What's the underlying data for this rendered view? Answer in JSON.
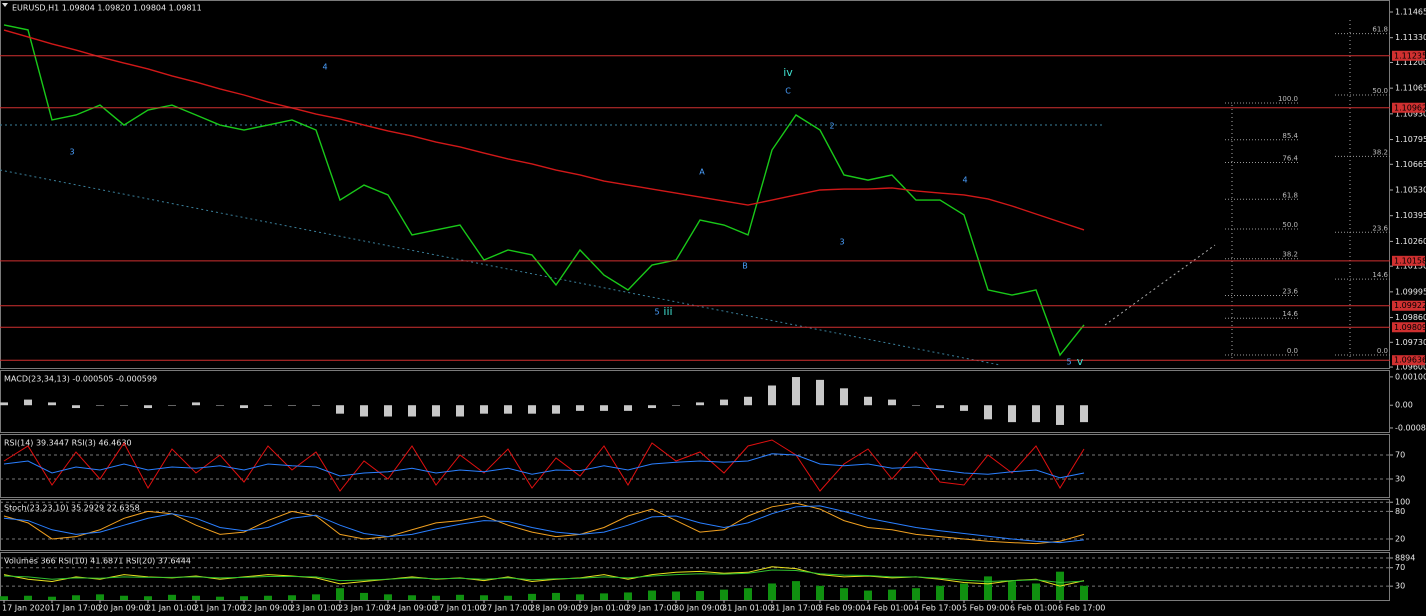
{
  "chart_data": [
    {
      "type": "line",
      "title": "EURUSD,H1 1.09804 1.09820 1.09804 1.09811",
      "categories": [
        "17 Jan 2020",
        null,
        "17 Jan 17:00",
        null,
        "20 Jan 09:00",
        null,
        "21 Jan 01:00",
        null,
        "21 Jan 17:00",
        null,
        "22 Jan 09:00",
        null,
        "23 Jan 01:00",
        null,
        "23 Jan 17:00",
        null,
        "24 Jan 09:00",
        null,
        "27 Jan 01:00",
        null,
        "27 Jan 17:00",
        null,
        "28 Jan 09:00",
        null,
        "29 Jan 01:00",
        null,
        "29 Jan 17:00",
        null,
        "30 Jan 09:00",
        null,
        "31 Jan 01:00",
        null,
        "31 Jan 17:00",
        null,
        "3 Feb 09:00",
        null,
        "4 Feb 01:00",
        null,
        "4 Feb 17:00",
        null,
        "5 Feb 09:00",
        null,
        "6 Feb 01:00",
        null,
        "6 Feb 17:00",
        null
      ],
      "series": [
        {
          "color": "#19c819",
          "values": [
            1.11397,
            1.11371,
            1.10898,
            1.10924,
            1.10976,
            1.10871,
            1.1095,
            1.10976,
            1.10924,
            1.10871,
            1.10845,
            1.10871,
            1.10898,
            1.10845,
            1.10477,
            1.10556,
            1.10504,
            1.10294,
            1.1032,
            1.10346,
            1.10162,
            1.10215,
            1.10189,
            1.10031,
            1.10215,
            1.10083,
            1.10005,
            1.10136,
            1.10162,
            1.10372,
            1.10346,
            1.10294,
            1.1074,
            1.10924,
            1.10845,
            1.10609,
            1.10582,
            1.10609,
            1.10477,
            1.10477,
            1.10399,
            1.10005,
            1.09978,
            1.10005,
            1.09663,
            1.09821
          ]
        },
        {
          "color": "#d01818",
          "values": [
            1.1137,
            1.11334,
            1.11297,
            1.11265,
            1.11229,
            1.11197,
            1.11166,
            1.11129,
            1.11097,
            1.11061,
            1.11029,
            1.10992,
            1.10961,
            1.10929,
            1.10903,
            1.10871,
            1.1084,
            1.10814,
            1.10782,
            1.10756,
            1.10724,
            1.10693,
            1.10667,
            1.10635,
            1.10609,
            1.10577,
            1.10556,
            1.10535,
            1.10514,
            1.10493,
            1.10472,
            1.10451,
            1.10477,
            1.10504,
            1.1053,
            1.10535,
            1.10535,
            1.10541,
            1.10525,
            1.10514,
            1.10504,
            1.10483,
            1.10446,
            1.10404,
            1.10362,
            1.1032
          ]
        }
      ],
      "ylim": [
        1.09595,
        1.11528
      ],
      "yticks": [
        {
          "value": 1.11465,
          "label": "1.11465"
        },
        {
          "value": 1.1133,
          "label": "1.11330"
        },
        {
          "value": 1.112,
          "label": "1.11200"
        },
        {
          "value": 1.11065,
          "label": "1.11065"
        },
        {
          "value": 1.1093,
          "label": "1.10930"
        },
        {
          "value": 1.10795,
          "label": "1.10795"
        },
        {
          "value": 1.10665,
          "label": "1.10665"
        },
        {
          "value": 1.1053,
          "label": "1.10530"
        },
        {
          "value": 1.10395,
          "label": "1.10395"
        },
        {
          "value": 1.1026,
          "label": "1.10260"
        },
        {
          "value": 1.1013,
          "label": "1.10130"
        },
        {
          "value": 1.09995,
          "label": "1.09995"
        },
        {
          "value": 1.0986,
          "label": "1.09860"
        },
        {
          "value": 1.0973,
          "label": "1.09730"
        },
        {
          "value": 1.096,
          "label": "1.09600"
        }
      ],
      "grid": false,
      "levels": [
        1.11235,
        1.10962,
        1.10158,
        1.09922,
        1.09809,
        1.09636
      ],
      "level_color": "#d03030",
      "wave_labels": [
        "3",
        "4",
        "iv",
        "C",
        "A",
        "B",
        "5",
        "iii",
        "2",
        "3",
        "4",
        "5",
        "v"
      ],
      "fib_left": [
        {
          "value": 100,
          "label": "100.0"
        },
        85.4,
        76.4,
        61.8,
        {
          "value": 50,
          "label": "50.0"
        },
        38.2,
        23.6,
        14.6,
        {
          "value": 0,
          "label": "0.0"
        }
      ],
      "fib_right": [
        61.8,
        {
          "value": 50,
          "label": "50.0"
        },
        38.2,
        23.6,
        14.6,
        {
          "value": 0,
          "label": "0.0"
        }
      ]
    },
    {
      "type": "bar",
      "title": "MACD(23,34,13) -0.000505 -0.000599",
      "color": "#c8c8c8",
      "values": [
        0.0001,
        0.0002,
        0.0001,
        -0.0001,
        0.0,
        0.0,
        -0.0001,
        0.0,
        0.0001,
        0.0,
        -0.0001,
        0.0,
        0.0,
        0.0,
        -0.0003,
        -0.0004,
        -0.0004,
        -0.0004,
        -0.0004,
        -0.0004,
        -0.0003,
        -0.0003,
        -0.0003,
        -0.0003,
        -0.0002,
        -0.0002,
        -0.0002,
        -0.0001,
        0.0,
        0.0001,
        0.0002,
        0.0003,
        0.0007,
        0.001,
        0.0009,
        0.0006,
        0.0003,
        0.0002,
        0.0,
        -0.0001,
        -0.0002,
        -0.0005,
        -0.0006,
        -0.0006,
        -0.0007,
        -0.0006
      ],
      "ylim": [
        -0.00095,
        0.00125
      ],
      "yticks": [
        0.001005,
        {
          "value": 0,
          "label": "0.00"
        },
        -0.000807
      ],
      "grid": false
    },
    {
      "type": "line",
      "title": "RSI(14) 39.3447 RSI(3) 46.4630",
      "series": [
        {
          "color": "#e01010",
          "values": [
            60,
            85,
            20,
            75,
            30,
            90,
            15,
            80,
            40,
            70,
            25,
            85,
            45,
            75,
            10,
            60,
            30,
            85,
            20,
            70,
            40,
            80,
            15,
            65,
            35,
            85,
            20,
            90,
            60,
            75,
            40,
            85,
            95,
            70,
            10,
            55,
            80,
            30,
            75,
            25,
            20,
            70,
            40,
            85,
            15,
            80
          ]
        },
        {
          "color": "#2a7fff",
          "values": [
            55,
            60,
            40,
            50,
            45,
            55,
            45,
            50,
            48,
            52,
            45,
            55,
            52,
            50,
            35,
            40,
            42,
            48,
            40,
            45,
            42,
            48,
            38,
            45,
            44,
            52,
            45,
            55,
            58,
            60,
            58,
            60,
            72,
            70,
            55,
            52,
            55,
            48,
            50,
            45,
            40,
            38,
            42,
            45,
            32,
            40
          ]
        }
      ],
      "ylim": [
        0,
        105
      ],
      "yticks": [
        70,
        30
      ],
      "grid": true
    },
    {
      "type": "line",
      "title": "Stoch(23,23,10) 35.2929 22.6358",
      "series": [
        {
          "color": "#f0a020",
          "values": [
            70,
            55,
            20,
            25,
            40,
            65,
            80,
            75,
            50,
            30,
            35,
            60,
            80,
            70,
            30,
            20,
            25,
            40,
            55,
            60,
            70,
            50,
            35,
            25,
            30,
            45,
            70,
            85,
            60,
            35,
            40,
            70,
            90,
            98,
            85,
            60,
            45,
            40,
            30,
            25,
            20,
            15,
            12,
            10,
            15,
            30
          ]
        },
        {
          "color": "#2a7fff",
          "values": [
            65,
            60,
            40,
            30,
            35,
            50,
            65,
            75,
            65,
            45,
            38,
            45,
            65,
            72,
            50,
            32,
            25,
            30,
            42,
            52,
            60,
            58,
            45,
            35,
            30,
            35,
            50,
            68,
            70,
            55,
            45,
            55,
            75,
            90,
            92,
            80,
            65,
            55,
            45,
            38,
            32,
            26,
            20,
            15,
            12,
            18
          ]
        }
      ],
      "ylim": [
        -4,
        107
      ],
      "yticks": [
        100,
        80,
        20
      ],
      "grid": true
    },
    {
      "type": "bar",
      "title": "Volumes 366 RSI(10) 41.6871 RSI(20) 37.6444",
      "color": "#109010",
      "values": [
        800,
        900,
        700,
        1000,
        1200,
        900,
        800,
        1100,
        900,
        700,
        800,
        900,
        1000,
        1200,
        2500,
        1500,
        1200,
        1000,
        900,
        1100,
        1000,
        900,
        1300,
        1500,
        1200,
        1400,
        1600,
        2000,
        1800,
        1900,
        2200,
        2500,
        3500,
        4000,
        3000,
        2500,
        2000,
        2200,
        2500,
        3000,
        3500,
        5000,
        4000,
        3500,
        6000,
        3000
      ],
      "ylim": [
        0,
        10165
      ],
      "yticks": [
        8894
      ],
      "series": [
        {
          "axis": "y2",
          "color": "#e8e020",
          "values": [
            55,
            45,
            40,
            50,
            45,
            55,
            50,
            48,
            52,
            45,
            50,
            55,
            52,
            48,
            35,
            40,
            45,
            50,
            45,
            48,
            42,
            50,
            40,
            45,
            48,
            55,
            45,
            55,
            60,
            62,
            58,
            60,
            72,
            68,
            55,
            50,
            52,
            48,
            50,
            45,
            38,
            35,
            42,
            45,
            30,
            42
          ]
        },
        {
          "axis": "y2",
          "color": "#30c030",
          "values": [
            52,
            50,
            45,
            48,
            47,
            50,
            49,
            49,
            50,
            48,
            49,
            51,
            51,
            50,
            42,
            43,
            45,
            48,
            46,
            47,
            45,
            48,
            44,
            46,
            47,
            50,
            48,
            52,
            55,
            57,
            56,
            58,
            65,
            64,
            57,
            54,
            53,
            50,
            50,
            47,
            43,
            40,
            42,
            44,
            38,
            41
          ]
        }
      ],
      "y2lim": [
        0,
        104
      ],
      "y2ticks": [
        70,
        30
      ],
      "grid": true
    }
  ]
}
